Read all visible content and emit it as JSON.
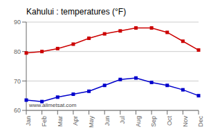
{
  "chart_data": {
    "type": "line",
    "title": "Kahului : temperatures (°F)",
    "categories": [
      "Jan",
      "Feb",
      "Mar",
      "Apr",
      "May",
      "Jun",
      "Jul",
      "Aug",
      "Sep",
      "Oct",
      "Nov",
      "Dec"
    ],
    "series": [
      {
        "color": "#cc0000",
        "marker": "square",
        "values": [
          79.5,
          80.0,
          81.0,
          82.5,
          84.5,
          86.0,
          87.0,
          88.0,
          88.0,
          86.5,
          83.5,
          80.5
        ]
      },
      {
        "color": "#0000cc",
        "marker": "square",
        "values": [
          63.5,
          63.0,
          64.5,
          65.5,
          66.5,
          68.5,
          70.5,
          71.0,
          69.5,
          68.5,
          67.0,
          65.0
        ]
      }
    ],
    "ylim": [
      60,
      90
    ],
    "yticks": [
      60,
      70,
      80,
      90
    ],
    "grid": true,
    "annotations": [
      "www.allmetsat.com"
    ]
  }
}
